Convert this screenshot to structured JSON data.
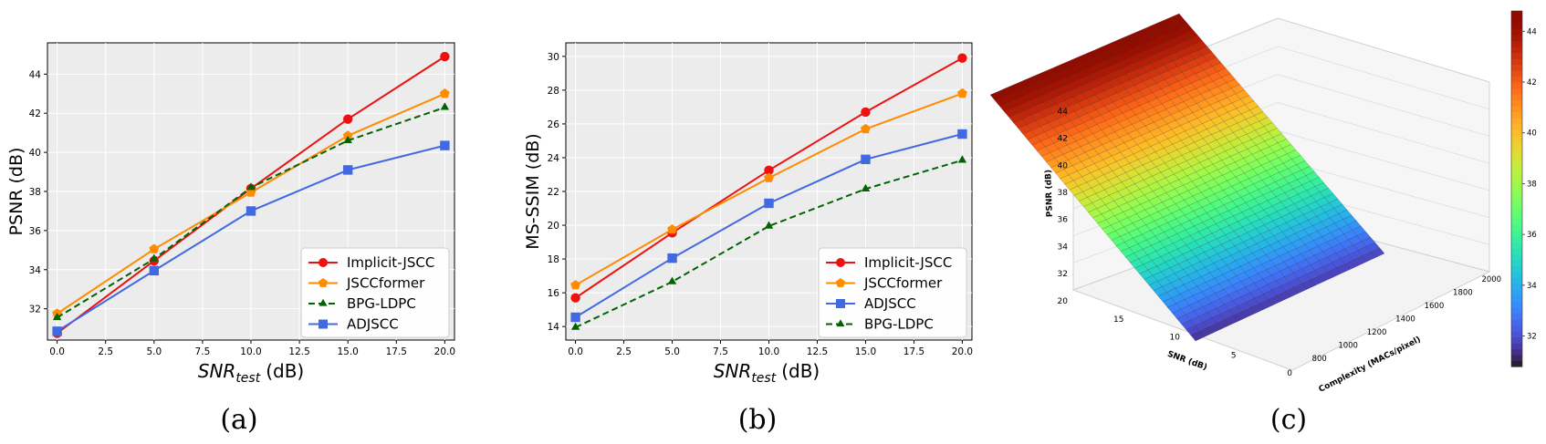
{
  "chart_data": [
    {
      "type": "line",
      "caption": "(a)",
      "xlabel_main": "SNR",
      "xlabel_sub": "test",
      "xlabel_unit": "(dB)",
      "ylabel": "PSNR (dB)",
      "x": [
        0.0,
        5.0,
        10.0,
        15.0,
        20.0
      ],
      "xlim": [
        -0.5,
        20.5
      ],
      "ylim": [
        30.4,
        45.6
      ],
      "xticks": [
        "0.0",
        "2.5",
        "5.0",
        "7.5",
        "10.0",
        "12.5",
        "15.0",
        "17.5",
        "20.0"
      ],
      "yticks": [
        "32",
        "34",
        "36",
        "38",
        "40",
        "42",
        "44"
      ],
      "grid": true,
      "legend_position": "lower-right",
      "series": [
        {
          "name": "Implicit-JSCC",
          "color": "#ee1111",
          "marker": "circle",
          "dash": "solid",
          "values": [
            30.75,
            34.45,
            38.15,
            41.7,
            44.9
          ]
        },
        {
          "name": "JSCCformer",
          "color": "#ff8c00",
          "marker": "pentagon",
          "dash": "solid",
          "values": [
            31.75,
            35.05,
            37.95,
            40.85,
            43.0
          ]
        },
        {
          "name": "BPG-LDPC",
          "color": "#006400",
          "marker": "triangle",
          "dash": "dashed",
          "values": [
            31.55,
            34.55,
            38.2,
            40.6,
            42.3
          ]
        },
        {
          "name": "ADJSCC",
          "color": "#4169e1",
          "marker": "square",
          "dash": "solid",
          "values": [
            30.85,
            33.95,
            37.0,
            39.1,
            40.35
          ]
        }
      ]
    },
    {
      "type": "line",
      "caption": "(b)",
      "xlabel_main": "SNR",
      "xlabel_sub": "test",
      "xlabel_unit": "(dB)",
      "ylabel": "MS-SSIM (dB)",
      "x": [
        0.0,
        5.0,
        10.0,
        15.0,
        20.0
      ],
      "xlim": [
        -0.5,
        20.5
      ],
      "ylim": [
        13.2,
        30.8
      ],
      "xticks": [
        "0.0",
        "2.5",
        "5.0",
        "7.5",
        "10.0",
        "12.5",
        "15.0",
        "17.5",
        "20.0"
      ],
      "yticks": [
        "14",
        "16",
        "18",
        "20",
        "22",
        "24",
        "26",
        "28",
        "30"
      ],
      "grid": true,
      "legend_position": "lower-right",
      "series": [
        {
          "name": "Implicit-JSCC",
          "color": "#ee1111",
          "marker": "circle",
          "dash": "solid",
          "values": [
            15.7,
            19.55,
            23.25,
            26.7,
            29.9
          ]
        },
        {
          "name": "JSCCformer",
          "color": "#ff8c00",
          "marker": "pentagon",
          "dash": "solid",
          "values": [
            16.45,
            19.75,
            22.8,
            25.7,
            27.8
          ]
        },
        {
          "name": "ADJSCC",
          "color": "#4169e1",
          "marker": "square",
          "dash": "solid",
          "values": [
            14.55,
            18.05,
            21.3,
            23.9,
            25.4
          ]
        },
        {
          "name": "BPG-LDPC",
          "color": "#006400",
          "marker": "triangle",
          "dash": "dashed",
          "values": [
            13.95,
            16.65,
            19.95,
            22.15,
            23.85
          ]
        }
      ]
    },
    {
      "type": "surface",
      "caption": "(c)",
      "xlabel": "SNR (dB)",
      "ylabel": "Complexity (MACs/pixel)",
      "zlabel": "PSNR (dB)",
      "snr_ticks": [
        "0",
        "5",
        "10",
        "15",
        "20"
      ],
      "complexity_ticks": [
        "800",
        "1000",
        "1200",
        "1400",
        "1600",
        "1800",
        "2000"
      ],
      "psnr_ticks": [
        "32",
        "34",
        "36",
        "38",
        "40",
        "42",
        "44"
      ],
      "colorbar_ticks": [
        "32",
        "34",
        "36",
        "38",
        "40",
        "42",
        "44"
      ],
      "snr_range": [
        0,
        20
      ],
      "complexity_range": [
        700,
        2100
      ],
      "psnr_range": [
        30.8,
        44.8
      ],
      "colormap": "turbo"
    }
  ]
}
